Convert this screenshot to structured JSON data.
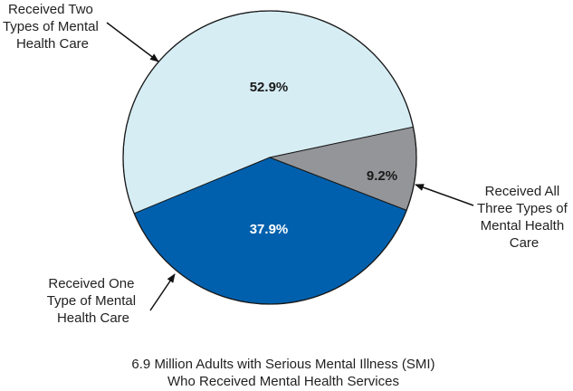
{
  "chart_data": {
    "type": "pie",
    "caption": [
      "6.9 Million Adults with Serious Mental Illness (SMI)",
      "Who Received Mental Health Services"
    ],
    "slices": [
      {
        "name": "Received Two Types of Mental Health Care",
        "value": 52.9,
        "label": "52.9%",
        "color": "#d6edf4",
        "label_color": "#1a1a1a",
        "callout_lines": [
          "Received Two",
          "Types of Mental",
          "Health Care"
        ]
      },
      {
        "name": "Received All Three Types of Mental Health Care",
        "value": 9.2,
        "label": "9.2%",
        "color": "#939598",
        "label_color": "#1a1a1a",
        "callout_lines": [
          "Received All",
          "Three Types of",
          "Mental Health",
          "Care"
        ]
      },
      {
        "name": "Received One Type of Mental Health Care",
        "value": 37.9,
        "label": "37.9%",
        "color": "#0060ad",
        "label_color": "#ffffff",
        "callout_lines": [
          "Received One",
          "Type of Mental",
          "Health Care"
        ]
      }
    ]
  }
}
